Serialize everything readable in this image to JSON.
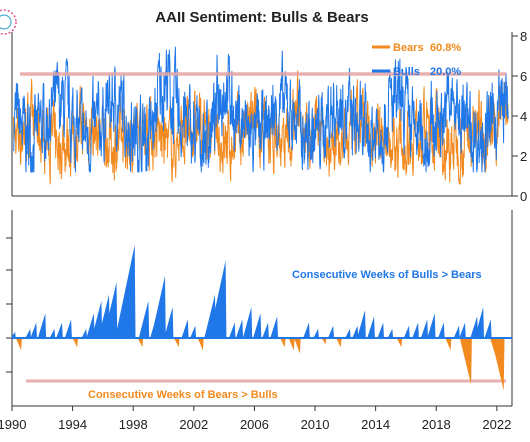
{
  "colors": {
    "bulls": "#1f77e8",
    "bears": "#f28a1f",
    "threshold": "#e6a3a3",
    "axis": "#333333",
    "background": "#ffffff"
  },
  "chart_data": [
    {
      "type": "line",
      "title": "AAII Sentiment: Bulls & Bears",
      "xlim": [
        1990,
        2023
      ],
      "ylim": [
        0,
        80
      ],
      "yticks": [
        "8",
        "6",
        "4",
        "2",
        "0"
      ],
      "series": [
        {
          "name": "Bears",
          "legend_value": "60.8%",
          "color": "#f28a1f"
        },
        {
          "name": "Bulls",
          "legend_value": "20.0%",
          "color": "#1f77e8"
        }
      ],
      "threshold_line": 61,
      "grid": false
    },
    {
      "type": "area",
      "xlim": [
        1990,
        2023
      ],
      "xticks": [
        "1990",
        "1994",
        "1998",
        "2002",
        "2006",
        "2010",
        "2014",
        "2018",
        "2022"
      ],
      "annotations": [
        {
          "text": "Consecutive Weeks of Bulls > Bears",
          "color": "#1f77e8"
        },
        {
          "text": "Consecutive Weeks of Bears > Bulls",
          "color": "#f28a1f"
        }
      ],
      "peaks": [
        {
          "x": 1990.2,
          "v": 2
        },
        {
          "x": 1990.6,
          "v": -4
        },
        {
          "x": 1991.2,
          "v": 3
        },
        {
          "x": 1991.6,
          "v": 5
        },
        {
          "x": 1992.2,
          "v": 8
        },
        {
          "x": 1992.8,
          "v": 3
        },
        {
          "x": 1993.3,
          "v": 5
        },
        {
          "x": 1993.9,
          "v": 6
        },
        {
          "x": 1994.3,
          "v": -3
        },
        {
          "x": 1994.9,
          "v": 3
        },
        {
          "x": 1995.4,
          "v": 8
        },
        {
          "x": 1995.9,
          "v": 12
        },
        {
          "x": 1996.4,
          "v": 14
        },
        {
          "x": 1996.9,
          "v": 18
        },
        {
          "x": 1997.6,
          "v": 10
        },
        {
          "x": 1998.1,
          "v": 30
        },
        {
          "x": 1998.6,
          "v": -3
        },
        {
          "x": 1999.0,
          "v": 12
        },
        {
          "x": 1999.6,
          "v": 8
        },
        {
          "x": 2000.1,
          "v": 20
        },
        {
          "x": 2000.6,
          "v": 10
        },
        {
          "x": 2001.0,
          "v": -3
        },
        {
          "x": 2001.6,
          "v": 6
        },
        {
          "x": 2002.1,
          "v": 4
        },
        {
          "x": 2002.6,
          "v": -4
        },
        {
          "x": 2003.4,
          "v": 14
        },
        {
          "x": 2004.1,
          "v": 25
        },
        {
          "x": 2004.7,
          "v": 5
        },
        {
          "x": 2005.2,
          "v": 6
        },
        {
          "x": 2005.8,
          "v": 10
        },
        {
          "x": 2006.4,
          "v": 8
        },
        {
          "x": 2006.9,
          "v": 5
        },
        {
          "x": 2007.5,
          "v": 7
        },
        {
          "x": 2008.0,
          "v": -3
        },
        {
          "x": 2008.6,
          "v": -4
        },
        {
          "x": 2009.0,
          "v": -5
        },
        {
          "x": 2009.6,
          "v": 5
        },
        {
          "x": 2010.2,
          "v": 3
        },
        {
          "x": 2010.7,
          "v": -2
        },
        {
          "x": 2011.2,
          "v": 4
        },
        {
          "x": 2011.7,
          "v": -3
        },
        {
          "x": 2012.3,
          "v": 3
        },
        {
          "x": 2012.8,
          "v": 4
        },
        {
          "x": 2013.3,
          "v": 9
        },
        {
          "x": 2013.9,
          "v": 7
        },
        {
          "x": 2014.5,
          "v": 5
        },
        {
          "x": 2015.1,
          "v": 3
        },
        {
          "x": 2015.7,
          "v": -3
        },
        {
          "x": 2016.2,
          "v": 4
        },
        {
          "x": 2016.8,
          "v": 5
        },
        {
          "x": 2017.4,
          "v": 6
        },
        {
          "x": 2017.9,
          "v": 8
        },
        {
          "x": 2018.5,
          "v": 5
        },
        {
          "x": 2018.95,
          "v": -4
        },
        {
          "x": 2019.5,
          "v": 4
        },
        {
          "x": 2019.9,
          "v": 5
        },
        {
          "x": 2020.3,
          "v": -15
        },
        {
          "x": 2020.7,
          "v": 7
        },
        {
          "x": 2021.1,
          "v": 10
        },
        {
          "x": 2021.6,
          "v": 6
        },
        {
          "x": 2022.0,
          "v": -7
        },
        {
          "x": 2022.45,
          "v": -17
        }
      ]
    }
  ]
}
